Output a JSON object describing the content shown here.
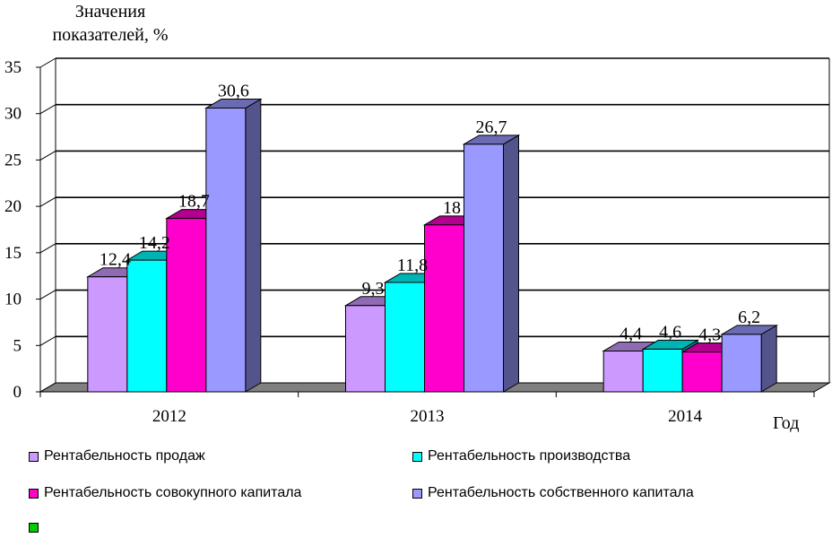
{
  "chart_data": {
    "type": "bar",
    "title": "",
    "ylabel_line1": "Значения",
    "ylabel_line2": "показателей, %",
    "xlabel": "Год",
    "ylim": [
      0,
      35
    ],
    "yticks": [
      "0",
      "5",
      "10",
      "15",
      "20",
      "25",
      "30",
      "35"
    ],
    "categories": [
      "2012",
      "2013",
      "2014"
    ],
    "series": [
      {
        "name": "Рентабельность продаж",
        "color": "#cc99ff",
        "values": [
          12.4,
          9.3,
          4.4
        ],
        "labels": [
          "12,4",
          "9,3",
          "4,4"
        ]
      },
      {
        "name": "Рентабельность производства",
        "color": "#00ffff",
        "values": [
          14.2,
          11.8,
          4.6
        ],
        "labels": [
          "14,2",
          "11,8",
          "4,6"
        ]
      },
      {
        "name": "Рентабельность совокупного капитала",
        "color": "#ff00cc",
        "values": [
          18.7,
          18,
          4.3
        ],
        "labels": [
          "18,7",
          "18",
          "4,3"
        ]
      },
      {
        "name": "Рентабельность собственного капитала",
        "color": "#9999ff",
        "values": [
          30.6,
          26.7,
          6.2
        ],
        "labels": [
          "30,6",
          "26,7",
          "6,2"
        ]
      }
    ],
    "extra_legend_color": "#00cc00",
    "grid": true,
    "legend_position": "bottom"
  }
}
